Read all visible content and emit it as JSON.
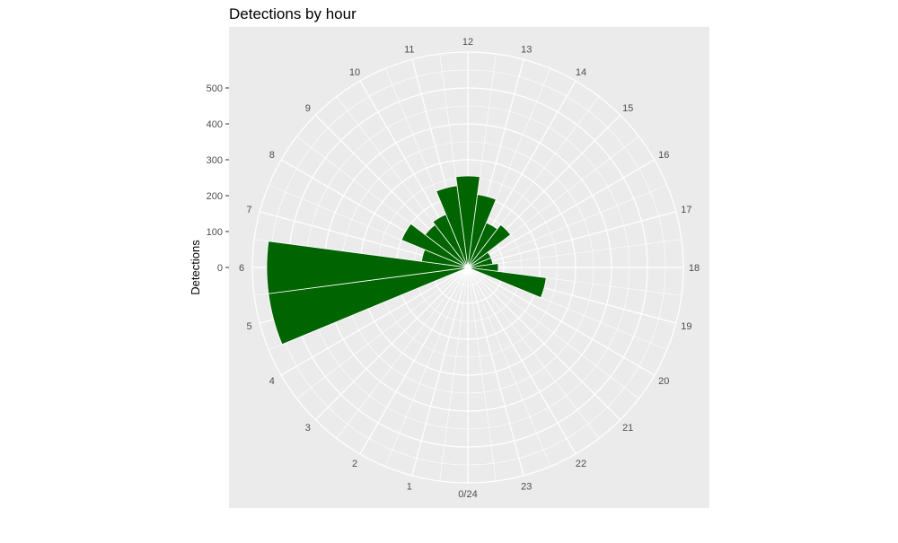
{
  "chart_data": {
    "type": "bar",
    "coord": "polar",
    "title": "Detections by hour",
    "xlabel": "",
    "ylabel": "Detections",
    "categories": [
      "0/24",
      "1",
      "2",
      "3",
      "4",
      "5",
      "6",
      "7",
      "8",
      "9",
      "10",
      "11",
      "12",
      "13",
      "14",
      "15",
      "16",
      "17",
      "18",
      "19",
      "20",
      "21",
      "22",
      "23"
    ],
    "values": [
      0,
      0,
      0,
      0,
      0,
      560,
      560,
      130,
      200,
      150,
      160,
      230,
      255,
      205,
      135,
      150,
      70,
      70,
      85,
      220,
      0,
      0,
      0,
      0
    ],
    "yticks": [
      0,
      100,
      200,
      300,
      400,
      500
    ],
    "ylim": [
      0,
      600
    ],
    "grid": true,
    "colors": {
      "bar": "#006400",
      "panel": "#ebebeb",
      "grid": "#ffffff"
    }
  }
}
